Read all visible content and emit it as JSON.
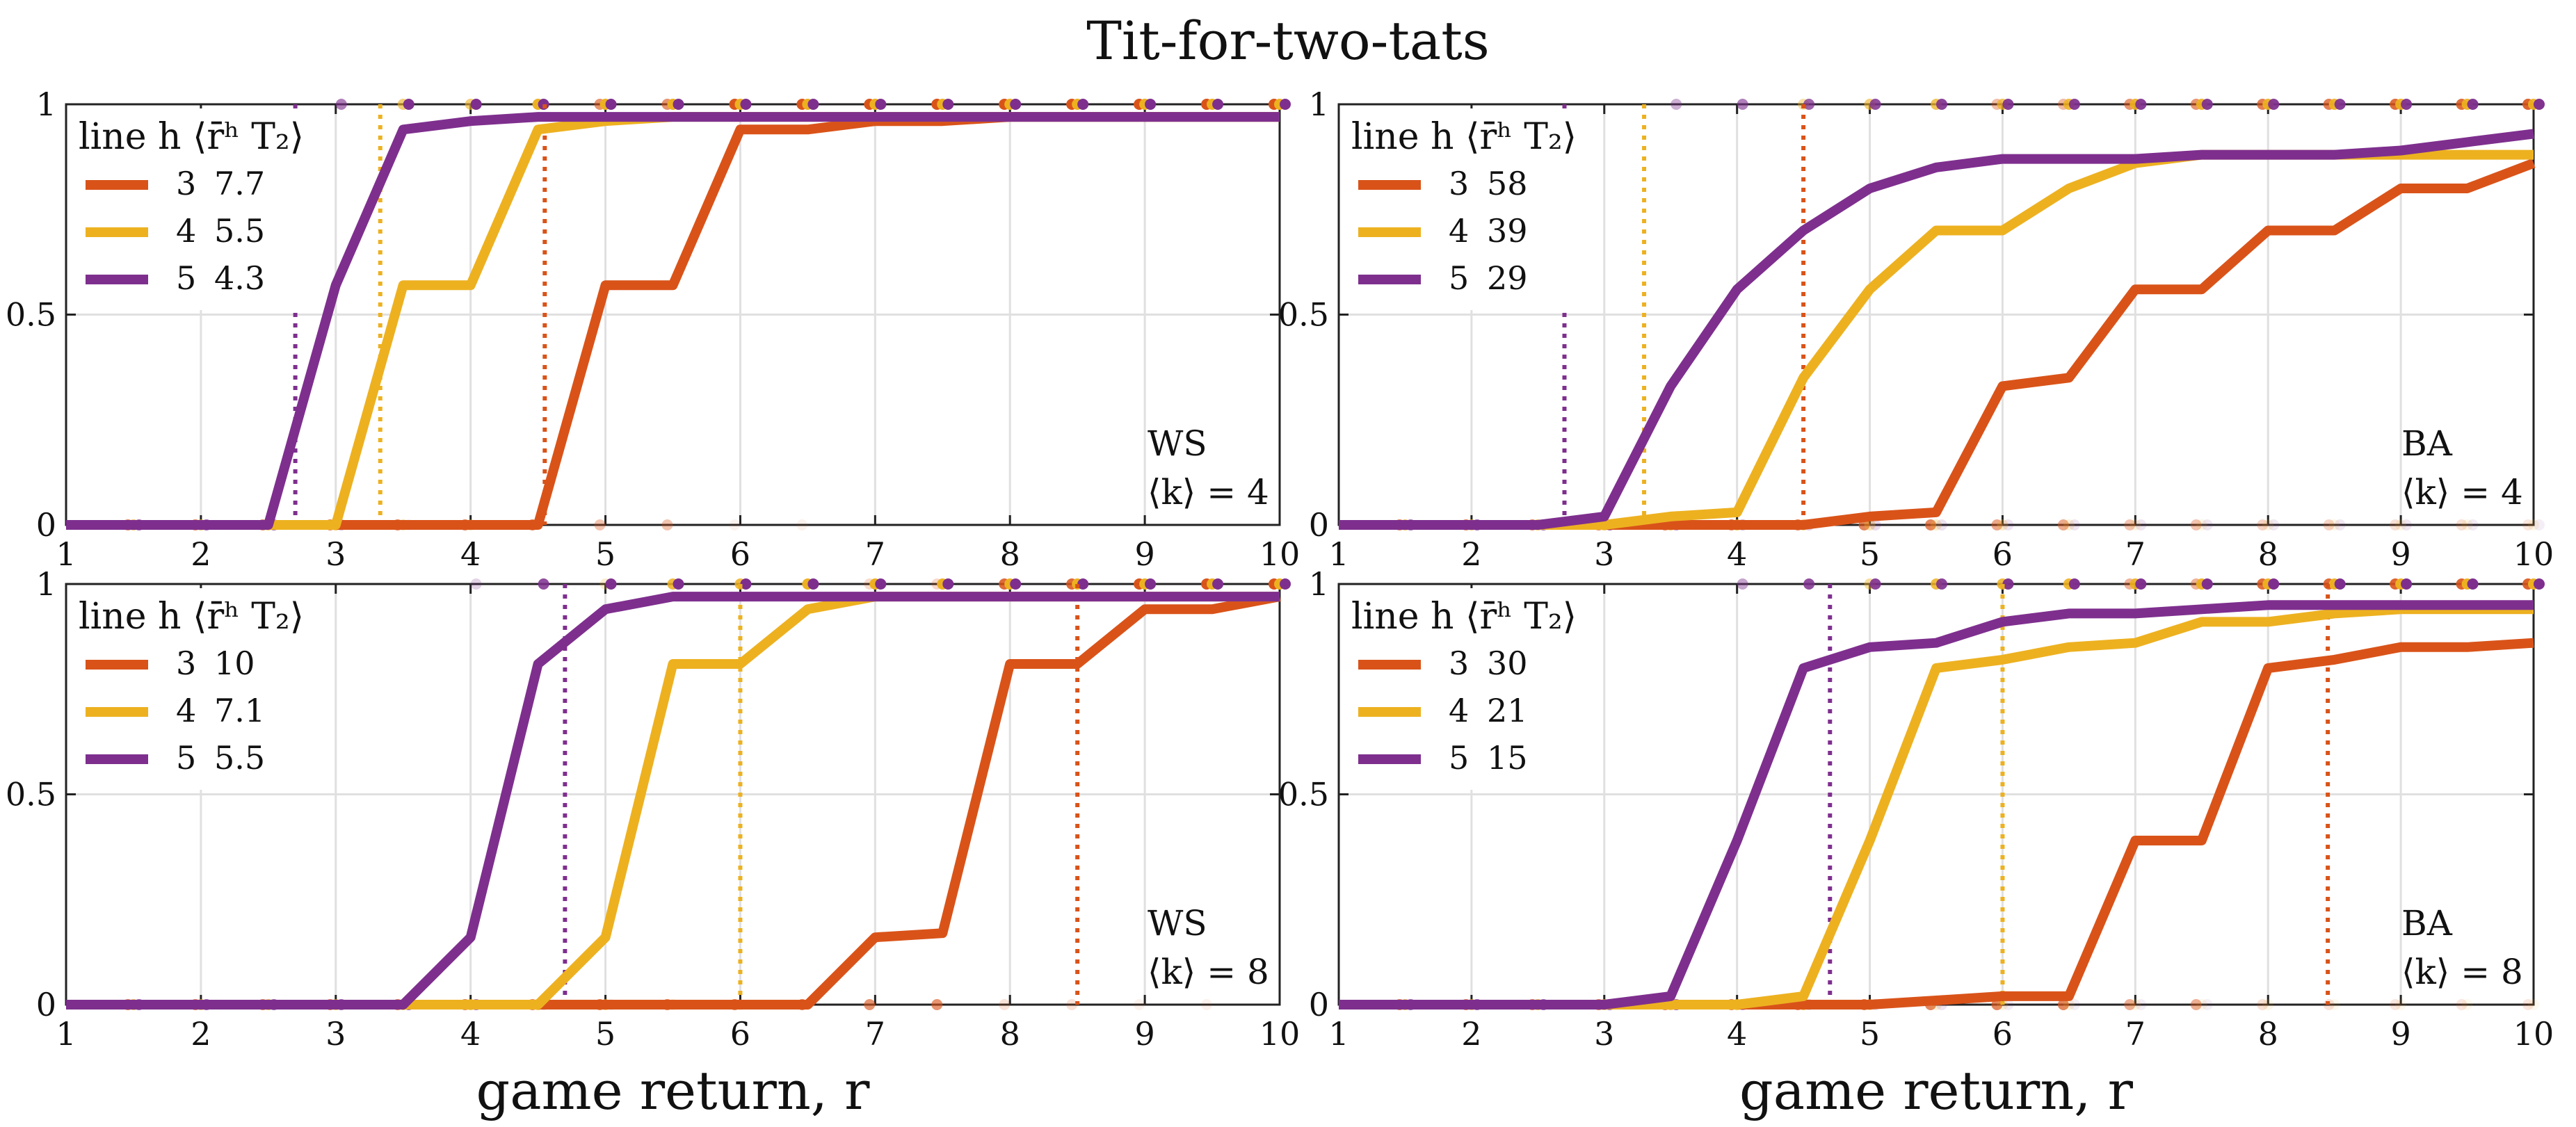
{
  "title": "Tit-for-two-tats",
  "colors": {
    "h3": "#d95319",
    "h4": "#edb120",
    "h5": "#7e2f8e"
  },
  "chart_data": [
    {
      "type": "line",
      "network": "WS",
      "k_label": "⟨k⟩ = 4",
      "xlabel": "",
      "xlim": [
        1,
        10
      ],
      "ylim": [
        0,
        1
      ],
      "xticks": [
        "1",
        "2",
        "3",
        "4",
        "5",
        "6",
        "7",
        "8",
        "9",
        "10"
      ],
      "yticks": [
        "0",
        "0.5",
        "1"
      ],
      "legend_header": "line h ⟨r̄ʰ T₂⟩",
      "series": [
        {
          "name": "3",
          "h": "3",
          "mean_r": "7.7",
          "threshold": 4.55,
          "x": [
            1,
            1.5,
            2,
            2.5,
            3,
            3.5,
            4,
            4.5,
            5,
            5.5,
            6,
            6.5,
            7,
            7.5,
            8,
            8.5,
            9,
            9.5,
            10
          ],
          "y": [
            0,
            0,
            0,
            0,
            0,
            0,
            0,
            0,
            0.57,
            0.57,
            0.94,
            0.94,
            0.96,
            0.96,
            0.97,
            0.97,
            0.97,
            0.97,
            0.97
          ]
        },
        {
          "name": "4",
          "h": "4",
          "mean_r": "5.5",
          "threshold": 3.33,
          "x": [
            1,
            1.5,
            2,
            2.5,
            3,
            3.5,
            4,
            4.5,
            5,
            5.5,
            6,
            6.5,
            7,
            7.5,
            8,
            8.5,
            9,
            9.5,
            10
          ],
          "y": [
            0,
            0,
            0,
            0,
            0,
            0.57,
            0.57,
            0.94,
            0.96,
            0.97,
            0.97,
            0.97,
            0.97,
            0.97,
            0.97,
            0.97,
            0.97,
            0.97,
            0.97
          ]
        },
        {
          "name": "5",
          "h": "5",
          "mean_r": "4.3",
          "threshold": 2.7,
          "x": [
            1,
            1.5,
            2,
            2.5,
            3,
            3.5,
            4,
            4.5,
            5,
            5.5,
            6,
            6.5,
            7,
            7.5,
            8,
            8.5,
            9,
            9.5,
            10
          ],
          "y": [
            0,
            0,
            0,
            0,
            0.57,
            0.94,
            0.96,
            0.97,
            0.97,
            0.97,
            0.97,
            0.97,
            0.97,
            0.97,
            0.97,
            0.97,
            0.97,
            0.97,
            0.97
          ]
        }
      ]
    },
    {
      "type": "line",
      "network": "BA",
      "k_label": "⟨k⟩ = 4",
      "xlabel": "",
      "xlim": [
        1,
        10
      ],
      "ylim": [
        0,
        1
      ],
      "xticks": [
        "1",
        "2",
        "3",
        "4",
        "5",
        "6",
        "7",
        "8",
        "9",
        "10"
      ],
      "yticks": [
        "0",
        "0.5",
        "1"
      ],
      "legend_header": "line h ⟨r̄ʰ T₂⟩",
      "series": [
        {
          "name": "3",
          "h": "3",
          "mean_r": "58",
          "threshold": 4.5,
          "x": [
            1,
            1.5,
            2,
            2.5,
            3,
            3.5,
            4,
            4.5,
            5,
            5.5,
            6,
            6.5,
            7,
            7.5,
            8,
            8.5,
            9,
            9.5,
            10
          ],
          "y": [
            0,
            0,
            0,
            0,
            0,
            0,
            0,
            0,
            0.02,
            0.03,
            0.33,
            0.35,
            0.56,
            0.56,
            0.7,
            0.7,
            0.8,
            0.8,
            0.86
          ]
        },
        {
          "name": "4",
          "h": "4",
          "mean_r": "39",
          "threshold": 3.3,
          "x": [
            1,
            1.5,
            2,
            2.5,
            3,
            3.5,
            4,
            4.5,
            5,
            5.5,
            6,
            6.5,
            7,
            7.5,
            8,
            8.5,
            9,
            9.5,
            10
          ],
          "y": [
            0,
            0,
            0,
            0,
            0,
            0.02,
            0.03,
            0.35,
            0.56,
            0.7,
            0.7,
            0.8,
            0.86,
            0.88,
            0.88,
            0.88,
            0.88,
            0.88,
            0.88
          ]
        },
        {
          "name": "5",
          "h": "5",
          "mean_r": "29",
          "threshold": 2.7,
          "x": [
            1,
            1.5,
            2,
            2.5,
            3,
            3.5,
            4,
            4.5,
            5,
            5.5,
            6,
            6.5,
            7,
            7.5,
            8,
            8.5,
            9,
            9.5,
            10
          ],
          "y": [
            0,
            0,
            0,
            0,
            0.02,
            0.33,
            0.56,
            0.7,
            0.8,
            0.85,
            0.87,
            0.87,
            0.87,
            0.88,
            0.88,
            0.88,
            0.89,
            0.91,
            0.93
          ]
        }
      ]
    },
    {
      "type": "line",
      "network": "WS",
      "k_label": "⟨k⟩ = 8",
      "xlabel": "game return, r",
      "xlim": [
        1,
        10
      ],
      "ylim": [
        0,
        1
      ],
      "xticks": [
        "1",
        "2",
        "3",
        "4",
        "5",
        "6",
        "7",
        "8",
        "9",
        "10"
      ],
      "yticks": [
        "0",
        "0.5",
        "1"
      ],
      "legend_header": "line h ⟨r̄ʰ T₂⟩",
      "series": [
        {
          "name": "3",
          "h": "3",
          "mean_r": "10",
          "threshold": 8.5,
          "x": [
            1,
            1.5,
            2,
            2.5,
            3,
            3.5,
            4,
            4.5,
            5,
            5.5,
            6,
            6.5,
            7,
            7.5,
            8,
            8.5,
            9,
            9.5,
            10
          ],
          "y": [
            0,
            0,
            0,
            0,
            0,
            0,
            0,
            0,
            0,
            0,
            0,
            0,
            0.16,
            0.17,
            0.81,
            0.81,
            0.94,
            0.94,
            0.97
          ]
        },
        {
          "name": "4",
          "h": "4",
          "mean_r": "7.1",
          "threshold": 6.0,
          "x": [
            1,
            1.5,
            2,
            2.5,
            3,
            3.5,
            4,
            4.5,
            5,
            5.5,
            6,
            6.5,
            7,
            7.5,
            8,
            8.5,
            9,
            9.5,
            10
          ],
          "y": [
            0,
            0,
            0,
            0,
            0,
            0,
            0,
            0,
            0.16,
            0.81,
            0.81,
            0.94,
            0.97,
            0.97,
            0.97,
            0.97,
            0.97,
            0.97,
            0.97
          ]
        },
        {
          "name": "5",
          "h": "5",
          "mean_r": "5.5",
          "threshold": 4.7,
          "x": [
            1,
            1.5,
            2,
            2.5,
            3,
            3.5,
            4,
            4.5,
            5,
            5.5,
            6,
            6.5,
            7,
            7.5,
            8,
            8.5,
            9,
            9.5,
            10
          ],
          "y": [
            0,
            0,
            0,
            0,
            0,
            0,
            0.16,
            0.81,
            0.94,
            0.97,
            0.97,
            0.97,
            0.97,
            0.97,
            0.97,
            0.97,
            0.97,
            0.97,
            0.97
          ]
        }
      ]
    },
    {
      "type": "line",
      "network": "BA",
      "k_label": "⟨k⟩ = 8",
      "xlabel": "game return, r",
      "xlim": [
        1,
        10
      ],
      "ylim": [
        0,
        1
      ],
      "xticks": [
        "1",
        "2",
        "3",
        "4",
        "5",
        "6",
        "7",
        "8",
        "9",
        "10"
      ],
      "yticks": [
        "0",
        "0.5",
        "1"
      ],
      "legend_header": "line h ⟨r̄ʰ T₂⟩",
      "series": [
        {
          "name": "3",
          "h": "3",
          "mean_r": "30",
          "threshold": 8.45,
          "x": [
            1,
            1.5,
            2,
            2.5,
            3,
            3.5,
            4,
            4.5,
            5,
            5.5,
            6,
            6.5,
            7,
            7.5,
            8,
            8.5,
            9,
            9.5,
            10
          ],
          "y": [
            0,
            0,
            0,
            0,
            0,
            0,
            0,
            0,
            0,
            0.01,
            0.02,
            0.02,
            0.39,
            0.39,
            0.8,
            0.82,
            0.85,
            0.85,
            0.86
          ]
        },
        {
          "name": "4",
          "h": "4",
          "mean_r": "21",
          "threshold": 6.0,
          "x": [
            1,
            1.5,
            2,
            2.5,
            3,
            3.5,
            4,
            4.5,
            5,
            5.5,
            6,
            6.5,
            7,
            7.5,
            8,
            8.5,
            9,
            9.5,
            10
          ],
          "y": [
            0,
            0,
            0,
            0,
            0,
            0,
            0,
            0.02,
            0.39,
            0.8,
            0.82,
            0.85,
            0.86,
            0.91,
            0.91,
            0.93,
            0.94,
            0.94,
            0.94
          ]
        },
        {
          "name": "5",
          "h": "5",
          "mean_r": "15",
          "threshold": 4.7,
          "x": [
            1,
            1.5,
            2,
            2.5,
            3,
            3.5,
            4,
            4.5,
            5,
            5.5,
            6,
            6.5,
            7,
            7.5,
            8,
            8.5,
            9,
            9.5,
            10
          ],
          "y": [
            0,
            0,
            0,
            0,
            0,
            0.02,
            0.39,
            0.8,
            0.85,
            0.86,
            0.91,
            0.93,
            0.93,
            0.94,
            0.95,
            0.95,
            0.95,
            0.95,
            0.95
          ]
        }
      ]
    }
  ]
}
